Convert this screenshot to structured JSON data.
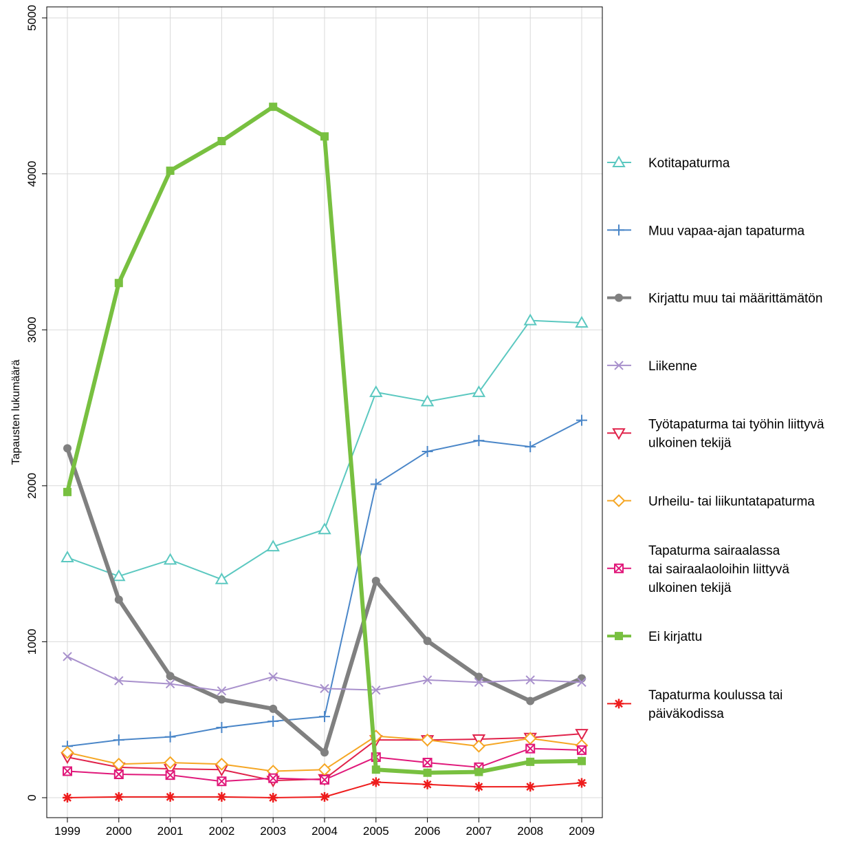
{
  "chart_data": {
    "type": "line",
    "title": "",
    "xlabel": "",
    "ylabel": "Tapausten lukumäärä",
    "x": [
      "1999",
      "2000",
      "2001",
      "2002",
      "2003",
      "2004",
      "2005",
      "2006",
      "2007",
      "2008",
      "2009"
    ],
    "ylim": [
      0,
      5000
    ],
    "yticks": [
      "0",
      "1000",
      "2000",
      "3000",
      "4000",
      "5000"
    ],
    "grid": true,
    "legend_position": "right",
    "series": [
      {
        "name": "Kotitapaturma",
        "marker": "triangle-up",
        "color": "#5BC8C0",
        "width": 2,
        "values": [
          1540,
          1420,
          1525,
          1400,
          1610,
          1720,
          2600,
          2540,
          2600,
          3060,
          3045
        ]
      },
      {
        "name": "Muu vapaa-ajan tapaturma",
        "marker": "plus",
        "color": "#4A86C8",
        "width": 2,
        "values": [
          330,
          370,
          390,
          450,
          490,
          520,
          2010,
          2220,
          2290,
          2250,
          2420
        ]
      },
      {
        "name": "Kirjattu muu tai määrittämätön",
        "marker": "circle",
        "color": "#808080",
        "width": 6,
        "values": [
          2240,
          1270,
          780,
          630,
          570,
          290,
          1390,
          1005,
          775,
          620,
          765
        ]
      },
      {
        "name": "Liikenne",
        "marker": "x",
        "color": "#A890CC",
        "width": 2,
        "values": [
          905,
          750,
          730,
          685,
          775,
          700,
          690,
          755,
          740,
          755,
          740
        ]
      },
      {
        "name": "Työtapaturma tai työhin liittyvä ulkoinen tekijä",
        "marker": "triangle-down",
        "color": "#E0224A",
        "width": 2,
        "values": [
          260,
          195,
          185,
          180,
          110,
          120,
          370,
          370,
          375,
          385,
          410
        ]
      },
      {
        "name": "Urheilu- tai liikuntatapaturma",
        "marker": "diamond",
        "color": "#F5A623",
        "width": 2,
        "values": [
          290,
          215,
          225,
          215,
          170,
          180,
          395,
          370,
          330,
          380,
          335
        ]
      },
      {
        "name": "Tapaturma sairaalassa tai sairaalaoloihin liittyvä ulkoinen tekijä",
        "marker": "square-x",
        "color": "#E0187A",
        "width": 2,
        "values": [
          170,
          150,
          145,
          105,
          125,
          115,
          260,
          225,
          195,
          315,
          305
        ]
      },
      {
        "name": "Ei kirjattu",
        "marker": "square",
        "color": "#78C040",
        "width": 6,
        "values": [
          1960,
          3300,
          4020,
          4210,
          4430,
          4240,
          180,
          160,
          165,
          230,
          235
        ]
      },
      {
        "name": "Tapaturma koulussa tai päiväkodissa",
        "marker": "asterisk",
        "color": "#EE1C1C",
        "width": 2,
        "values": [
          0,
          5,
          5,
          5,
          0,
          5,
          100,
          85,
          70,
          70,
          95
        ]
      }
    ]
  },
  "legend": {
    "items": [
      {
        "lines": [
          "Kotitapaturma"
        ]
      },
      {
        "lines": [
          "Muu vapaa-ajan tapaturma"
        ]
      },
      {
        "lines": [
          "Kirjattu muu tai määrittämätön"
        ]
      },
      {
        "lines": [
          "Liikenne"
        ]
      },
      {
        "lines": [
          "Työtapaturma tai työhin liittyvä",
          "ulkoinen tekijä"
        ]
      },
      {
        "lines": [
          "Urheilu- tai liikuntatapaturma"
        ]
      },
      {
        "lines": [
          "Tapaturma sairaalassa",
          "tai sairaalaoloihin liittyvä",
          "ulkoinen tekijä"
        ]
      },
      {
        "lines": [
          "Ei kirjattu"
        ]
      },
      {
        "lines": [
          "Tapaturma koulussa tai",
          "päiväkodissa"
        ]
      }
    ]
  }
}
